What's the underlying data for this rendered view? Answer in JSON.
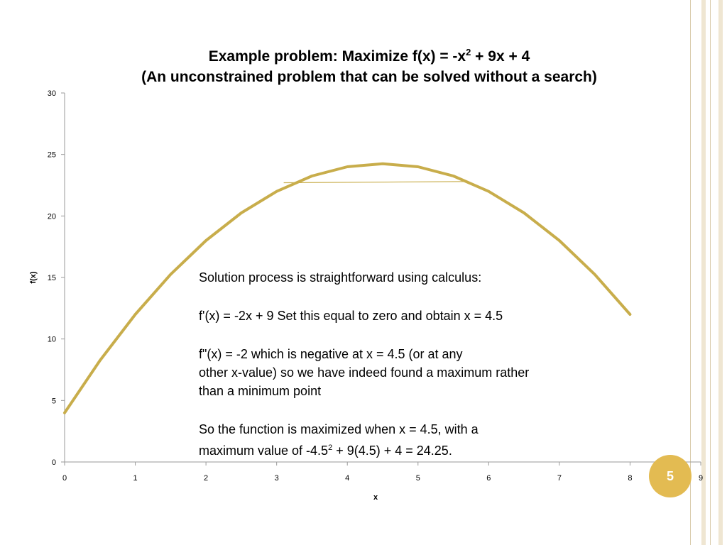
{
  "slide": {
    "title_line1_prefix": "Example problem:  Maximize   f(x) = -x",
    "title_line1_sup": "2",
    "title_line1_suffix": " + 9x + 4",
    "title_line2": "(An unconstrained problem that can be solved without a search)",
    "page_number": "5",
    "accent_color": "#e3bb52"
  },
  "annotation": {
    "line1": "Solution process is straightforward using calculus:",
    "line2": "f'(x) = -2x + 9   Set this equal to zero and obtain x = 4.5",
    "line3a": "f\"(x) = -2  which is negative at x = 4.5 (or at any",
    "line3b": "other x-value) so we have indeed found a maximum rather",
    "line3c": "than a minimum point",
    "line4a": "So the function is maximized when x = 4.5, with a",
    "line4b_prefix": "maximum value of -4.5",
    "line4b_sup": "2",
    "line4b_suffix": " + 9(4.5) + 4 = 24.25."
  },
  "chart_data": {
    "type": "line",
    "xlabel": "x",
    "ylabel": "f(x)",
    "xlim": [
      0,
      9
    ],
    "ylim": [
      0,
      30
    ],
    "x_ticks": [
      "0",
      "1",
      "2",
      "3",
      "4",
      "5",
      "6",
      "7",
      "8",
      "9"
    ],
    "y_ticks": [
      "0",
      "5",
      "10",
      "15",
      "20",
      "25",
      "30"
    ],
    "grid": false,
    "series_color": "#c8ad4b",
    "series": [
      {
        "x": [
          0,
          0.5,
          1,
          1.5,
          2,
          2.5,
          3,
          3.5,
          4,
          4.5,
          5,
          5.5,
          6,
          6.5,
          7,
          7.5,
          8
        ],
        "y": [
          4,
          8.25,
          12,
          15.25,
          18,
          20.25,
          22,
          23.25,
          24,
          24.25,
          24,
          23.25,
          22,
          20.25,
          18,
          15.25,
          12
        ]
      }
    ],
    "chord": {
      "x": [
        3.1,
        5.7
      ],
      "y": [
        22.7,
        22.8
      ]
    }
  }
}
